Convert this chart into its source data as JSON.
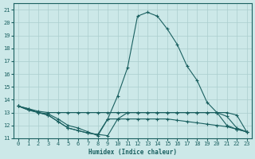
{
  "xlabel": "Humidex (Indice chaleur)",
  "ylabel": "",
  "xlim": [
    -0.5,
    23.5
  ],
  "ylim": [
    11,
    21.5
  ],
  "yticks": [
    11,
    12,
    13,
    14,
    15,
    16,
    17,
    18,
    19,
    20,
    21
  ],
  "xticks": [
    0,
    1,
    2,
    3,
    4,
    5,
    6,
    7,
    8,
    9,
    10,
    11,
    12,
    13,
    14,
    15,
    16,
    17,
    18,
    19,
    20,
    21,
    22,
    23
  ],
  "bg_color": "#cce8e8",
  "grid_color": "#aacece",
  "line_color": "#1a6060",
  "lines": [
    [
      13.5,
      13.3,
      13.1,
      13.0,
      13.0,
      13.0,
      13.0,
      13.0,
      13.0,
      13.0,
      13.0,
      13.0,
      13.0,
      13.0,
      13.0,
      13.0,
      13.0,
      13.0,
      13.0,
      13.0,
      13.0,
      13.0,
      12.8,
      11.5
    ],
    [
      13.5,
      13.3,
      13.0,
      12.9,
      12.5,
      12.0,
      11.8,
      11.5,
      11.2,
      12.5,
      14.3,
      16.5,
      20.5,
      20.8,
      20.5,
      19.5,
      18.3,
      16.6,
      15.5,
      13.8,
      13.0,
      12.7,
      11.8,
      11.5
    ],
    [
      13.5,
      13.2,
      13.0,
      12.8,
      12.3,
      11.8,
      11.6,
      11.4,
      11.3,
      11.2,
      12.5,
      13.0,
      13.0,
      13.0,
      13.0,
      13.0,
      13.0,
      13.0,
      13.0,
      13.0,
      13.0,
      12.0,
      11.7,
      11.5
    ],
    [
      13.5,
      13.2,
      13.0,
      12.8,
      12.3,
      11.8,
      11.6,
      11.4,
      11.3,
      12.5,
      12.5,
      12.5,
      12.5,
      12.5,
      12.5,
      12.5,
      12.4,
      12.3,
      12.2,
      12.1,
      12.0,
      11.9,
      11.7,
      11.5
    ]
  ]
}
